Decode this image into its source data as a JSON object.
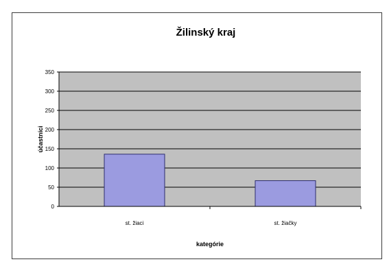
{
  "chart_data": {
    "type": "bar",
    "title": "Žilinský kraj",
    "xlabel": "kategórie",
    "ylabel": "účastníci",
    "categories": [
      "st. žiaci",
      "st. žiačky"
    ],
    "values": [
      136,
      67
    ],
    "ylim": [
      0,
      350
    ],
    "yticks": [
      "0",
      "50",
      "100",
      "150",
      "200",
      "250",
      "300",
      "350"
    ],
    "grid": true,
    "legend": "none",
    "colors": {
      "plot_background": "#c0c0c0",
      "bar_fill": "#9b9be0",
      "bar_stroke": "#2d2d6e",
      "gridline": "#000000"
    }
  }
}
